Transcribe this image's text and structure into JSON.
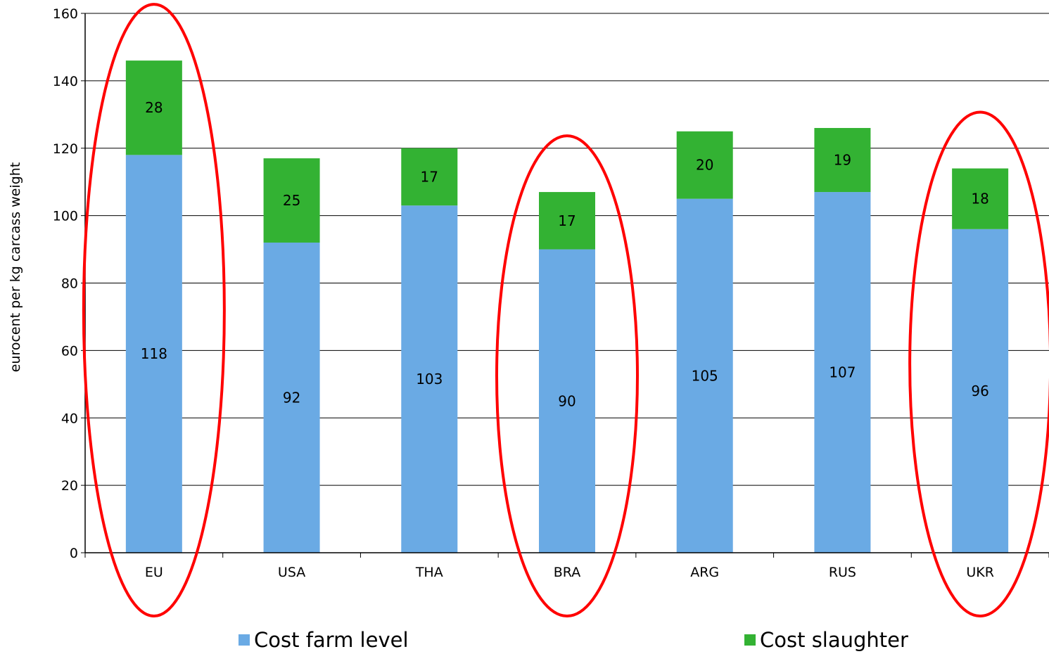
{
  "chart_data": {
    "type": "bar",
    "stacked": true,
    "categories": [
      "EU",
      "USA",
      "THA",
      "BRA",
      "ARG",
      "RUS",
      "UKR"
    ],
    "series": [
      {
        "name": "Cost farm level",
        "color": "#6aaae4",
        "values": [
          118,
          92,
          103,
          90,
          105,
          107,
          96
        ]
      },
      {
        "name": "Cost slaughter",
        "color": "#33b233",
        "values": [
          28,
          25,
          17,
          17,
          20,
          19,
          18
        ]
      }
    ],
    "ylabel": "eurocent per kg carcass weight",
    "yticks": [
      "0",
      "20",
      "40",
      "60",
      "80",
      "100",
      "120",
      "140",
      "160"
    ],
    "ylim": [
      0,
      160
    ],
    "grid": true,
    "legend_position": "bottom",
    "highlighted_categories": [
      "EU",
      "BRA",
      "UKR"
    ],
    "highlight_color": "#ff0000"
  }
}
